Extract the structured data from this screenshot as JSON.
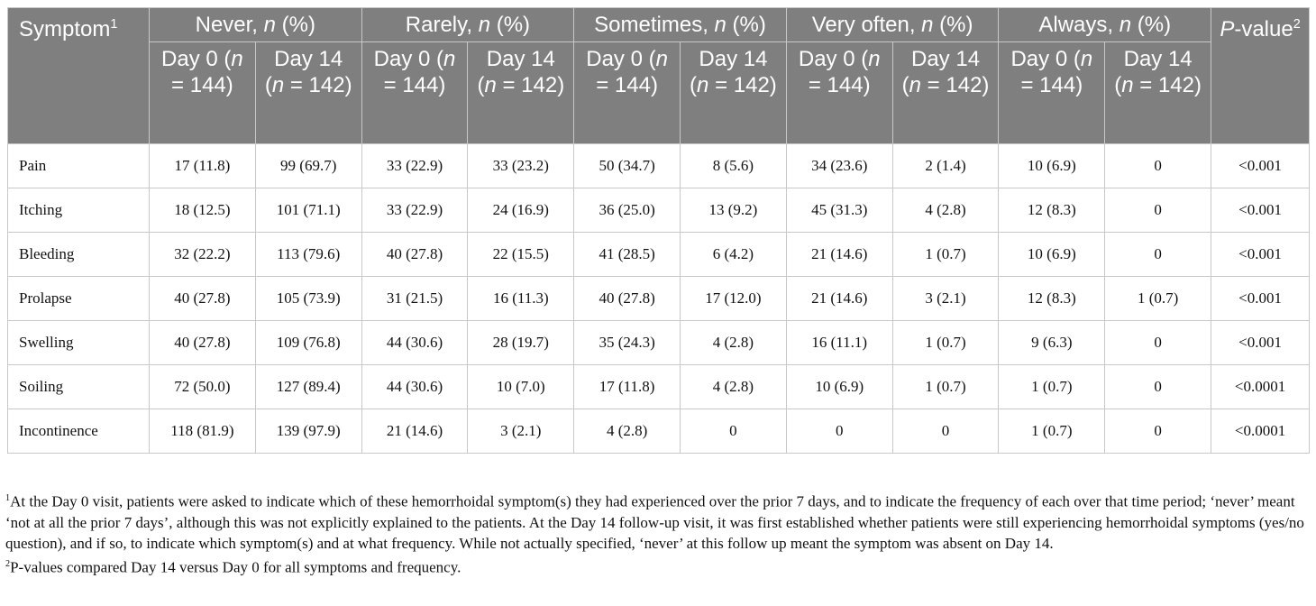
{
  "table": {
    "header": {
      "symptom": {
        "parts": [
          "Symptom"
        ],
        "sup": "1"
      },
      "groups": [
        {
          "parts": [
            "Never, ",
            "n",
            " (%)"
          ]
        },
        {
          "parts": [
            "Rarely, ",
            "n",
            " (%)"
          ]
        },
        {
          "parts": [
            "Sometimes, ",
            "n",
            " (%)"
          ]
        },
        {
          "parts": [
            "Very often, ",
            "n",
            " (%)"
          ]
        },
        {
          "parts": [
            "Always, ",
            "n",
            " (%)"
          ]
        }
      ],
      "pvalue": {
        "parts": [
          "",
          "P",
          "-value"
        ],
        "sup": "2"
      },
      "days": [
        {
          "parts": [
            "Day 0 (",
            "n",
            " = 144)"
          ]
        },
        {
          "parts": [
            "Day 14 (",
            "n",
            " = 142)"
          ]
        }
      ]
    },
    "rows": [
      {
        "symptom": "Pain",
        "cells": [
          "17 (11.8)",
          "99 (69.7)",
          "33 (22.9)",
          "33 (23.2)",
          "50 (34.7)",
          "8 (5.6)",
          "34 (23.6)",
          "2 (1.4)",
          "10 (6.9)",
          "0"
        ],
        "p": "<0.001"
      },
      {
        "symptom": "Itching",
        "cells": [
          "18 (12.5)",
          "101 (71.1)",
          "33 (22.9)",
          "24 (16.9)",
          "36 (25.0)",
          "13 (9.2)",
          "45 (31.3)",
          "4 (2.8)",
          "12 (8.3)",
          "0"
        ],
        "p": "<0.001"
      },
      {
        "symptom": "Bleeding",
        "cells": [
          "32 (22.2)",
          "113 (79.6)",
          "40 (27.8)",
          "22 (15.5)",
          "41 (28.5)",
          "6 (4.2)",
          "21 (14.6)",
          "1 (0.7)",
          "10 (6.9)",
          "0"
        ],
        "p": "<0.001"
      },
      {
        "symptom": "Prolapse",
        "cells": [
          "40 (27.8)",
          "105 (73.9)",
          "31 (21.5)",
          "16 (11.3)",
          "40 (27.8)",
          "17 (12.0)",
          "21 (14.6)",
          "3 (2.1)",
          "12 (8.3)",
          "1 (0.7)"
        ],
        "p": "<0.001"
      },
      {
        "symptom": "Swelling",
        "cells": [
          "40 (27.8)",
          "109 (76.8)",
          "44 (30.6)",
          "28 (19.7)",
          "35 (24.3)",
          "4 (2.8)",
          "16 (11.1)",
          "1 (0.7)",
          "9 (6.3)",
          "0"
        ],
        "p": "<0.001"
      },
      {
        "symptom": "Soiling",
        "cells": [
          "72 (50.0)",
          "127 (89.4)",
          "44 (30.6)",
          "10 (7.0)",
          "17 (11.8)",
          "4 (2.8)",
          "10 (6.9)",
          "1 (0.7)",
          "1 (0.7)",
          "0"
        ],
        "p": "<0.0001"
      },
      {
        "symptom": "Incontinence",
        "cells": [
          "118 (81.9)",
          "139 (97.9)",
          "21 (14.6)",
          "3 (2.1)",
          "4 (2.8)",
          "0",
          "0",
          "0",
          "1 (0.7)",
          "0"
        ],
        "p": "<0.0001"
      }
    ]
  },
  "footnotes": [
    {
      "mark": "1",
      "text": "At the Day 0 visit, patients were asked to indicate which of these hemorrhoidal symptom(s) they had experienced over the prior 7 days, and to indicate the frequency of each over that time period; ‘never’ meant ‘not at all the prior 7 days’, although this was not explicitly explained to the patients. At the Day 14 follow-up visit, it was first established whether patients were still experiencing hemorrhoidal symptoms (yes/no question), and if so, to indicate which symptom(s) and at what frequency. While not actually specified, ‘never’ at this follow up meant the symptom was absent on Day 14."
    },
    {
      "mark": "2",
      "text": "P-values compared Day 14 versus Day 0 for all symptoms and frequency."
    }
  ]
}
